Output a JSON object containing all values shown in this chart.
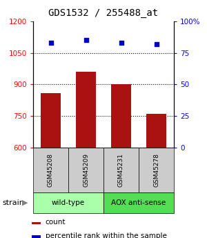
{
  "title": "GDS1532 / 255488_at",
  "samples": [
    "GSM45208",
    "GSM45209",
    "GSM45231",
    "GSM45278"
  ],
  "counts": [
    860,
    960,
    900,
    760
  ],
  "percentiles": [
    83,
    85,
    83,
    82
  ],
  "ylim_left": [
    600,
    1200
  ],
  "ylim_right": [
    0,
    100
  ],
  "yticks_left": [
    600,
    750,
    900,
    1050,
    1200
  ],
  "yticks_right": [
    0,
    25,
    50,
    75,
    100
  ],
  "bar_color": "#aa1111",
  "dot_color": "#0000cc",
  "bar_width": 0.55,
  "groups": [
    {
      "label": "wild-type",
      "samples": [
        0,
        1
      ],
      "color": "#aaffaa"
    },
    {
      "label": "AOX anti-sense",
      "samples": [
        2,
        3
      ],
      "color": "#55dd55"
    }
  ],
  "strain_label": "strain",
  "legend_count_label": "count",
  "legend_pct_label": "percentile rank within the sample",
  "title_fontsize": 10,
  "tick_fontsize": 7.5,
  "sample_fontsize": 6.5,
  "group_fontsize": 7.5,
  "legend_fontsize": 7.5
}
